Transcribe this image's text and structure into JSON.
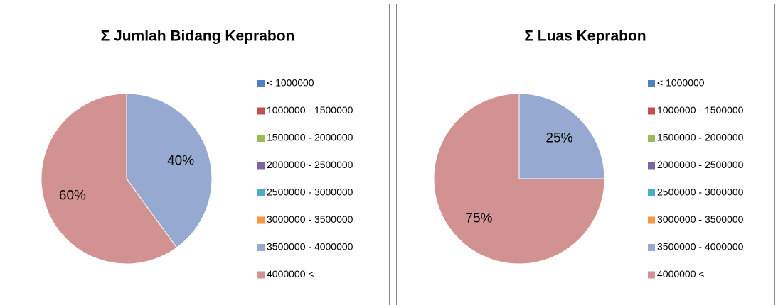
{
  "chart_data": [
    {
      "type": "pie",
      "title": "Σ Jumlah Bidang Keprabon",
      "categories": [
        "< 1000000",
        "1000000 - 1500000",
        "1500000 - 2000000",
        "2000000 - 2500000",
        "2500000 - 3000000",
        "3000000 - 3500000",
        "3500000 - 4000000",
        "4000000 <"
      ],
      "values": [
        0,
        0,
        0,
        0,
        0,
        0,
        40,
        60
      ],
      "value_labels": [
        null,
        null,
        null,
        null,
        null,
        null,
        "40%",
        "60%"
      ],
      "colors": [
        "#4f81bd",
        "#c0504d",
        "#9bbb59",
        "#8064a2",
        "#4bacc6",
        "#f79646",
        "#95a9d1",
        "#d29291"
      ],
      "legend": "right"
    },
    {
      "type": "pie",
      "title": "Σ Luas Keprabon",
      "categories": [
        "< 1000000",
        "1000000 - 1500000",
        "1500000 - 2000000",
        "2000000 - 2500000",
        "2500000 - 3000000",
        "3000000 - 3500000",
        "3500000 - 4000000",
        "4000000 <"
      ],
      "values": [
        0,
        0,
        0,
        0,
        0,
        0,
        25,
        75
      ],
      "value_labels": [
        null,
        null,
        null,
        null,
        null,
        null,
        "25%",
        "75%"
      ],
      "colors": [
        "#4f81bd",
        "#c0504d",
        "#9bbb59",
        "#8064a2",
        "#4bacc6",
        "#f79646",
        "#95a9d1",
        "#d29291"
      ],
      "legend": "right"
    }
  ]
}
